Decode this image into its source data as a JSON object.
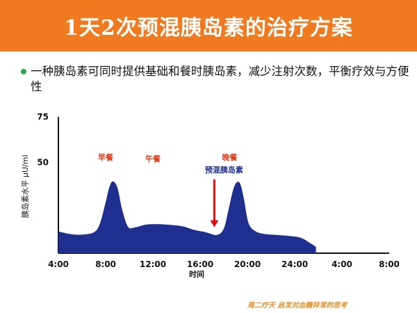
{
  "title": "1天2次预混胰岛素的治疗方案",
  "bullet_text": "一种胰岛素可同时提供基础和餐时胰岛素，减少注射次数，平衡疗效与方便性",
  "footnote": "周二疗天 启发对血糖异常的思考",
  "colors": {
    "title_bar": "#f07a1f",
    "bullet": "#2aa84a",
    "area": "#1f2f8f",
    "meal_label": "#e23a1a",
    "premix_label": "#1f2f8f",
    "arrow": "#e01010"
  },
  "chart_data": {
    "type": "area",
    "xlabel": "时间",
    "ylabel": "胰岛素水平 μU/ml",
    "x_ticks": [
      "4:00",
      "8:00",
      "12:00",
      "16:00",
      "20:00",
      "24:00",
      "4:00",
      "8:00"
    ],
    "y_ticks": [
      "50",
      "75"
    ],
    "x_range": [
      4,
      32
    ],
    "y_range": [
      0,
      75
    ],
    "series": [
      {
        "x": [
          4.0,
          5.0,
          6.0,
          7.0,
          7.5,
          8.0,
          8.3,
          8.6,
          9.0,
          9.4,
          9.9,
          10.5,
          11.5,
          13.0,
          14.5,
          15.5,
          16.5,
          17.4,
          18.0,
          18.4,
          18.8,
          19.1,
          19.4,
          19.7,
          20.1,
          20.7,
          21.5,
          22.5,
          23.5,
          24.5,
          25.2,
          25.8
        ],
        "y": [
          12.0,
          10.5,
          10.2,
          11.5,
          16.0,
          28.0,
          36.0,
          39.5,
          36.0,
          24.0,
          14.5,
          14.2,
          15.8,
          15.8,
          14.8,
          12.8,
          11.5,
          10.0,
          13.5,
          24.0,
          35.0,
          39.0,
          38.0,
          30.0,
          16.5,
          12.0,
          10.5,
          10.0,
          9.5,
          8.5,
          6.0,
          3.5
        ]
      }
    ],
    "annotations": {
      "breakfast": {
        "label": "早餐",
        "x": 8.0
      },
      "lunch": {
        "label": "午餐",
        "x": 12.0
      },
      "dinner": {
        "label": "晚餐",
        "x": 18.5
      },
      "premix": {
        "label": "预混胰岛素",
        "x": 17.2,
        "arrow_to_y": 13.5
      }
    }
  }
}
